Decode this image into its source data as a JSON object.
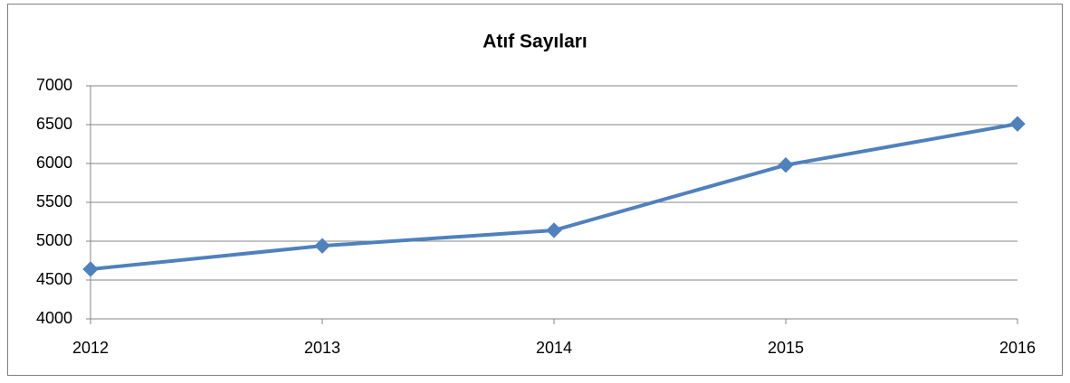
{
  "chart_data": {
    "type": "line",
    "title": "Atıf Sayıları",
    "categories": [
      "2012",
      "2013",
      "2014",
      "2015",
      "2016"
    ],
    "series": [
      {
        "name": "Atıf Sayıları",
        "color": "#4f81bd",
        "values": [
          4640,
          4940,
          5140,
          5980,
          6510
        ]
      }
    ],
    "ylim": [
      4000,
      7000
    ],
    "yticks": [
      4000,
      4500,
      5000,
      5500,
      6000,
      6500,
      7000
    ],
    "grid": true
  }
}
